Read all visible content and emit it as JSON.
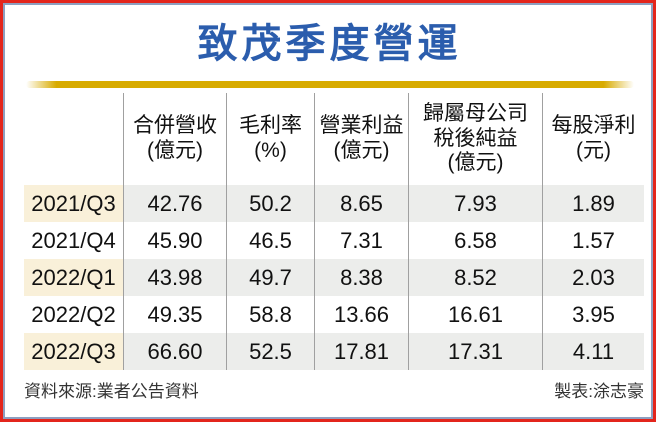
{
  "title": {
    "text": "致茂季度營運"
  },
  "table": {
    "headers": [
      "",
      "合併營收\n(億元)",
      "毛利率\n(%)",
      "營業利益\n(億元)",
      "歸屬母公司\n稅後純益\n(億元)",
      "每股淨利\n(元)"
    ],
    "rows": [
      {
        "period": "2021/Q3",
        "values": [
          "42.76",
          "50.2",
          "8.65",
          "7.93",
          "1.89"
        ]
      },
      {
        "period": "2021/Q4",
        "values": [
          "45.90",
          "46.5",
          "7.31",
          "6.58",
          "1.57"
        ]
      },
      {
        "period": "2022/Q1",
        "values": [
          "43.98",
          "49.7",
          "8.38",
          "8.52",
          "2.03"
        ]
      },
      {
        "period": "2022/Q2",
        "values": [
          "49.35",
          "58.8",
          "13.66",
          "16.61",
          "3.95"
        ]
      },
      {
        "period": "2022/Q3",
        "values": [
          "66.60",
          "52.5",
          "17.81",
          "17.31",
          "4.11"
        ]
      }
    ]
  },
  "footer": {
    "source": "資料來源:業者公告資料",
    "credit": "製表:涂志豪"
  },
  "colors": {
    "outer_border": "#e3251c",
    "inner_border": "#8d9fc0",
    "title": "#2b5dad",
    "divider": "#d8ab00",
    "shaded_label_bg": "#f9f0d9",
    "shaded_cell_bg": "#ecedeb",
    "grid_line": "#a0a0a0",
    "text": "#111111",
    "footer_text": "#333333"
  },
  "chart_data": {
    "type": "table",
    "title": "致茂季度營運",
    "columns": [
      "",
      "合併營收(億元)",
      "毛利率(%)",
      "營業利益(億元)",
      "歸屬母公司稅後純益(億元)",
      "每股淨利(元)"
    ],
    "rows": [
      [
        "2021/Q3",
        42.76,
        50.2,
        8.65,
        7.93,
        1.89
      ],
      [
        "2021/Q4",
        45.9,
        46.5,
        7.31,
        6.58,
        1.57
      ],
      [
        "2022/Q1",
        43.98,
        49.7,
        8.38,
        8.52,
        2.03
      ],
      [
        "2022/Q2",
        49.35,
        58.8,
        13.66,
        16.61,
        3.95
      ],
      [
        "2022/Q3",
        66.6,
        52.5,
        17.81,
        17.31,
        4.11
      ]
    ],
    "source": "資料來源:業者公告資料",
    "credit": "製表:涂志豪"
  }
}
